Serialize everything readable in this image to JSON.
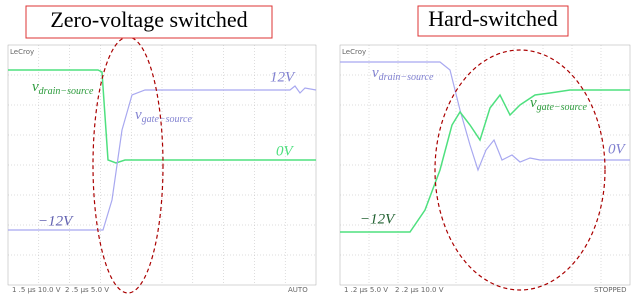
{
  "panels": [
    {
      "title": "Zero-voltage switched",
      "brand": "LeCroy",
      "drain_label": {
        "v": "v",
        "sub": "drain−source"
      },
      "gate_label": {
        "v": "v",
        "sub": "gate−source"
      },
      "levels": [
        "12V",
        "0V",
        "−12V"
      ],
      "status": [
        "1 .5 µs 10.0 V",
        "2 .5 µs 5.0 V"
      ],
      "mode": "AUTO"
    },
    {
      "title": "Hard-switched",
      "brand": "LeCroy",
      "drain_label": {
        "v": "v",
        "sub": "drain−source"
      },
      "gate_label": {
        "v": "v",
        "sub": "gate−source"
      },
      "levels": [
        "0V",
        "−12V"
      ],
      "status": [
        "1 .2 µs 5.0 V",
        "2 .2 µs 10.0 V"
      ],
      "mode": "STOPPED"
    }
  ]
}
